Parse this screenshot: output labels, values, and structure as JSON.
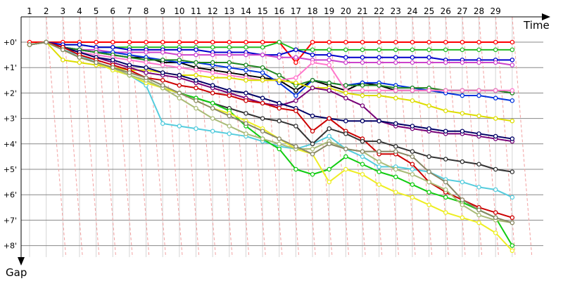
{
  "chart_data": {
    "type": "line",
    "xlabel": "Time",
    "ylabel": "Gap",
    "x": [
      1,
      2,
      3,
      4,
      5,
      6,
      7,
      8,
      9,
      10,
      11,
      12,
      13,
      14,
      15,
      16,
      17,
      18,
      19,
      20,
      21,
      22,
      23,
      24,
      25,
      26,
      27,
      28,
      29,
      30
    ],
    "x_tick_labels": [
      "1",
      "2",
      "3",
      "4",
      "5",
      "6",
      "7",
      "8",
      "9",
      "10",
      "11",
      "12",
      "13",
      "14",
      "15",
      "16",
      "17",
      "18",
      "19",
      "20",
      "21",
      "22",
      "23",
      "24",
      "25",
      "26",
      "27",
      "28",
      "29"
    ],
    "y_tick_labels": [
      "+0'",
      "+1'",
      "+2'",
      "+3'",
      "+4'",
      "+5'",
      "+6'",
      "+7'",
      "+8'"
    ],
    "ylim": [
      0,
      8.5
    ],
    "y_inverted": true,
    "grid": true,
    "series": [
      {
        "color": "#ff0000",
        "values": [
          0,
          0,
          0,
          0,
          0,
          0,
          0,
          0,
          0,
          0,
          0,
          0,
          0,
          0,
          0,
          0,
          0.8,
          0,
          0,
          0,
          0,
          0,
          0,
          0,
          0,
          0,
          0,
          0,
          0,
          0
        ]
      },
      {
        "color": "#22bb22",
        "values": [
          0.1,
          0,
          0.1,
          0.1,
          0.2,
          0.2,
          0.2,
          0.2,
          0.2,
          0.2,
          0.2,
          0.2,
          0.2,
          0.2,
          0.2,
          0,
          0.3,
          0.3,
          0.3,
          0.3,
          0.3,
          0.3,
          0.3,
          0.3,
          0.3,
          0.3,
          0.3,
          0.3,
          0.3,
          0.3
        ]
      },
      {
        "color": "#0000cc",
        "values": [
          0.1,
          0,
          0.1,
          0.1,
          0.2,
          0.2,
          0.3,
          0.3,
          0.3,
          0.3,
          0.3,
          0.4,
          0.4,
          0.4,
          0.5,
          0.5,
          0.3,
          0.5,
          0.5,
          0.6,
          0.6,
          0.6,
          0.6,
          0.6,
          0.6,
          0.7,
          0.7,
          0.7,
          0.7,
          0.7
        ]
      },
      {
        "color": "#cc44cc",
        "values": [
          0.1,
          0,
          0.2,
          0.3,
          0.3,
          0.4,
          0.4,
          0.4,
          0.4,
          0.5,
          0.5,
          0.5,
          0.5,
          0.5,
          0.5,
          0.6,
          0.6,
          0.7,
          0.7,
          0.8,
          0.8,
          0.8,
          0.8,
          0.8,
          0.8,
          0.8,
          0.8,
          0.8,
          0.8,
          0.9
        ]
      },
      {
        "color": "#000000",
        "values": [
          0.1,
          0,
          0.2,
          0.3,
          0.4,
          0.5,
          0.6,
          0.6,
          0.8,
          0.8,
          1.0,
          1.1,
          1.2,
          1.3,
          1.4,
          1.5,
          1.9,
          1.5,
          1.7,
          1.9,
          1.6,
          1.7,
          1.9,
          1.9,
          1.9,
          1.9,
          1.9,
          1.9,
          1.9,
          2.0
        ]
      },
      {
        "color": "#0033dd",
        "values": [
          0.1,
          0,
          0.2,
          0.3,
          0.4,
          0.4,
          0.5,
          0.6,
          0.7,
          0.8,
          0.8,
          0.9,
          1.0,
          1.1,
          1.2,
          1.6,
          2.1,
          1.5,
          1.6,
          1.7,
          1.6,
          1.6,
          1.7,
          1.8,
          1.9,
          2.0,
          2.1,
          2.1,
          2.2,
          2.3
        ]
      },
      {
        "color": "#228822",
        "values": [
          0.1,
          0,
          0.2,
          0.3,
          0.4,
          0.5,
          0.6,
          0.7,
          0.7,
          0.7,
          0.8,
          0.8,
          0.8,
          0.9,
          1.0,
          1.3,
          1.7,
          1.5,
          1.6,
          1.7,
          1.7,
          1.7,
          1.8,
          1.8,
          1.8,
          1.9,
          1.9,
          1.9,
          1.9,
          2.0
        ]
      },
      {
        "color": "#ff77cc",
        "values": [
          0.1,
          0,
          0.2,
          0.4,
          0.5,
          0.6,
          0.7,
          0.8,
          0.9,
          1.0,
          1.1,
          1.2,
          1.3,
          1.4,
          1.5,
          1.5,
          1.4,
          0.8,
          0.9,
          1.9,
          1.9,
          1.9,
          1.9,
          1.9,
          1.9,
          1.9,
          1.9,
          1.9,
          1.9,
          1.9
        ]
      },
      {
        "color": "#dddd00",
        "values": [
          0.1,
          0,
          0.7,
          0.8,
          0.9,
          1.0,
          1.1,
          1.1,
          1.2,
          1.3,
          1.3,
          1.4,
          1.4,
          1.5,
          1.5,
          1.5,
          1.6,
          1.8,
          1.8,
          2.0,
          2.1,
          2.1,
          2.2,
          2.3,
          2.5,
          2.7,
          2.8,
          2.9,
          3.0,
          3.1
        ]
      },
      {
        "color": "#770077",
        "values": [
          0.1,
          0,
          0.2,
          0.4,
          0.6,
          0.8,
          1.0,
          1.2,
          1.3,
          1.4,
          1.6,
          1.8,
          2.0,
          2.2,
          2.4,
          2.5,
          2.3,
          1.8,
          1.9,
          2.2,
          2.5,
          3.1,
          3.3,
          3.4,
          3.5,
          3.6,
          3.6,
          3.7,
          3.8,
          3.9
        ]
      },
      {
        "color": "#000066",
        "values": [
          0.1,
          0,
          0.2,
          0.4,
          0.6,
          0.7,
          0.9,
          1.0,
          1.2,
          1.3,
          1.5,
          1.7,
          1.9,
          2.0,
          2.2,
          2.4,
          2.6,
          2.9,
          3.0,
          3.1,
          3.1,
          3.1,
          3.2,
          3.3,
          3.4,
          3.5,
          3.5,
          3.6,
          3.7,
          3.8
        ]
      },
      {
        "color": "#55ccdd",
        "values": [
          0.1,
          0,
          0.3,
          0.5,
          0.8,
          1.1,
          1.3,
          1.7,
          3.2,
          3.3,
          3.4,
          3.5,
          3.6,
          3.7,
          3.9,
          4.1,
          4.2,
          4.0,
          3.7,
          4.2,
          4.5,
          4.9,
          4.9,
          5.0,
          5.1,
          5.4,
          5.5,
          5.7,
          5.8,
          6.1
        ]
      },
      {
        "color": "#cc0000",
        "values": [
          0.1,
          0,
          0.2,
          0.5,
          0.7,
          0.9,
          1.1,
          1.4,
          1.5,
          1.7,
          1.8,
          2.0,
          2.1,
          2.3,
          2.4,
          2.6,
          2.7,
          3.5,
          3.0,
          3.5,
          3.8,
          4.4,
          4.4,
          4.8,
          5.5,
          5.9,
          6.2,
          6.5,
          6.7,
          6.9
        ]
      },
      {
        "color": "#333333",
        "values": [
          0.1,
          0,
          0.3,
          0.6,
          0.8,
          1.0,
          1.3,
          1.5,
          1.8,
          2.0,
          2.2,
          2.4,
          2.6,
          2.8,
          3.0,
          3.1,
          3.3,
          4.0,
          3.4,
          3.6,
          3.9,
          3.9,
          4.1,
          4.3,
          4.5,
          4.6,
          4.7,
          4.8,
          5.0,
          5.1
        ]
      },
      {
        "color": "#11cc11",
        "values": [
          0.1,
          0,
          0.3,
          0.6,
          0.8,
          1.0,
          1.3,
          1.5,
          1.8,
          2.0,
          2.2,
          2.4,
          2.7,
          3.3,
          3.8,
          4.2,
          5.0,
          5.2,
          5.0,
          4.5,
          4.8,
          5.1,
          5.3,
          5.6,
          5.9,
          6.1,
          6.3,
          6.6,
          6.9,
          8.0
        ]
      },
      {
        "color": "#eeee22",
        "values": [
          0.1,
          0,
          0.3,
          0.6,
          0.8,
          1.1,
          1.3,
          1.6,
          1.8,
          2.0,
          2.3,
          2.6,
          2.8,
          3.1,
          3.4,
          3.8,
          4.2,
          4.4,
          5.5,
          5.0,
          5.2,
          5.6,
          5.9,
          6.1,
          6.4,
          6.7,
          6.9,
          7.1,
          7.5,
          8.2
        ]
      },
      {
        "color": "#aabb77",
        "values": [
          0.1,
          0,
          0.3,
          0.6,
          0.8,
          1.0,
          1.3,
          1.5,
          1.8,
          2.2,
          2.6,
          3.0,
          3.3,
          3.6,
          3.8,
          4.0,
          4.2,
          4.2,
          3.9,
          4.2,
          4.3,
          4.7,
          5.0,
          5.2,
          5.5,
          5.8,
          6.4,
          6.8,
          7.0,
          7.1
        ]
      },
      {
        "color": "#888866",
        "values": [
          0.1,
          0,
          0.3,
          0.6,
          0.8,
          1.0,
          1.2,
          1.4,
          1.7,
          2.0,
          2.3,
          2.6,
          2.9,
          3.2,
          3.5,
          3.8,
          4.1,
          4.4,
          4.0,
          4.2,
          4.3,
          4.3,
          4.3,
          4.5,
          5.1,
          5.5,
          6.2,
          6.6,
          6.9,
          7.1
        ]
      }
    ]
  }
}
